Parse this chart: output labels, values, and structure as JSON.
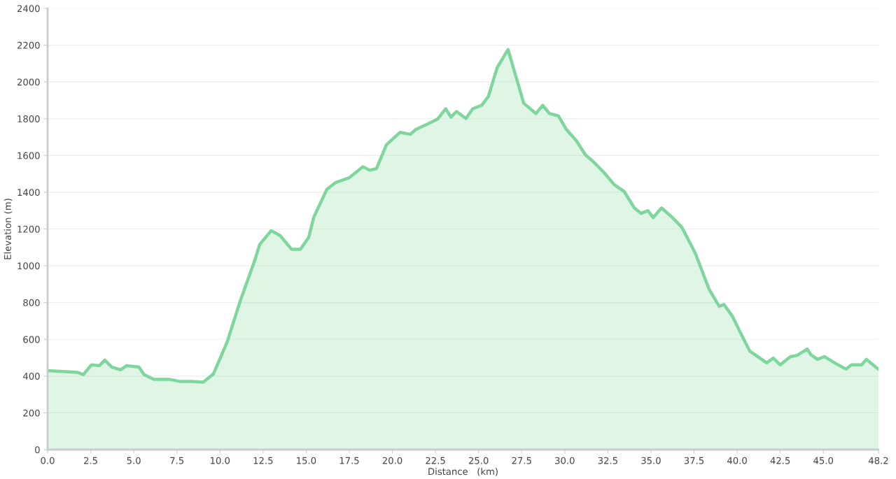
{
  "chart_data": {
    "type": "area",
    "xlabel": "Distance   (km)",
    "ylabel": "Elevation (m)",
    "series": [
      {
        "color": "#7fd69c",
        "x": [
          0.0,
          1.75,
          2.07,
          2.54,
          3.0,
          3.33,
          3.72,
          4.23,
          4.59,
          5.3,
          5.6,
          6.16,
          7.07,
          7.66,
          8.37,
          9.03,
          9.62,
          10.41,
          11.2,
          11.99,
          12.3,
          12.97,
          13.48,
          14.15,
          14.66,
          15.14,
          15.45,
          16.2,
          16.71,
          17.5,
          18.29,
          18.68,
          19.07,
          19.66,
          20.45,
          21.04,
          21.35,
          22.22,
          22.62,
          23.09,
          23.4,
          23.72,
          24.27,
          24.66,
          25.18,
          25.57,
          26.08,
          26.71,
          27.62,
          28.33,
          28.72,
          29.11,
          29.63,
          30.1,
          30.69,
          31.2,
          31.67,
          32.26,
          32.86,
          33.45,
          34.03,
          34.43,
          34.82,
          35.13,
          35.61,
          36.2,
          36.79,
          37.58,
          38.37,
          38.96,
          39.23,
          39.74,
          40.33,
          40.73,
          41.32,
          41.71,
          42.1,
          42.5,
          43.09,
          43.48,
          44.07,
          44.27,
          44.66,
          45.06,
          45.65,
          46.32,
          46.63,
          47.22,
          47.5,
          48.13,
          48.2
        ],
        "values": [
          430,
          420,
          408,
          461,
          457,
          487,
          449,
          434,
          457,
          449,
          408,
          382,
          382,
          371,
          371,
          367,
          412,
          584,
          816,
          1022,
          1116,
          1191,
          1165,
          1090,
          1090,
          1153,
          1266,
          1416,
          1453,
          1479,
          1539,
          1520,
          1528,
          1659,
          1726,
          1715,
          1741,
          1779,
          1798,
          1854,
          1809,
          1839,
          1801,
          1854,
          1873,
          1921,
          2078,
          2176,
          1884,
          1828,
          1873,
          1828,
          1816,
          1741,
          1678,
          1603,
          1565,
          1509,
          1442,
          1404,
          1315,
          1285,
          1300,
          1262,
          1315,
          1266,
          1210,
          1067,
          873,
          779,
          790,
          723,
          610,
          536,
          498,
          472,
          498,
          461,
          506,
          513,
          547,
          517,
          491,
          506,
          472,
          438,
          461,
          461,
          491,
          442,
          438
        ]
      }
    ],
    "xlim": [
      0,
      48.2
    ],
    "xticks": [
      {
        "value": 0,
        "label": "0.0"
      },
      {
        "value": 2.5,
        "label": "2.5"
      },
      {
        "value": 5,
        "label": "5.0"
      },
      {
        "value": 7.5,
        "label": "7.5"
      },
      {
        "value": 10,
        "label": "10.0"
      },
      {
        "value": 12.5,
        "label": "12.5"
      },
      {
        "value": 15,
        "label": "15.0"
      },
      {
        "value": 17.5,
        "label": "17.5"
      },
      {
        "value": 20,
        "label": "20.0"
      },
      {
        "value": 22.5,
        "label": "22.5"
      },
      {
        "value": 25,
        "label": "25.0"
      },
      {
        "value": 27.5,
        "label": "27.5"
      },
      {
        "value": 30,
        "label": "30.0"
      },
      {
        "value": 32.5,
        "label": "32.5"
      },
      {
        "value": 35,
        "label": "35.0"
      },
      {
        "value": 37.5,
        "label": "37.5"
      },
      {
        "value": 40,
        "label": "40.0"
      },
      {
        "value": 42.5,
        "label": "42.5"
      },
      {
        "value": 45,
        "label": "45.0"
      },
      {
        "value": 48.2,
        "label": "48.2"
      }
    ],
    "ylim": [
      0,
      2400
    ],
    "yticks": [
      0,
      200,
      400,
      600,
      800,
      1000,
      1200,
      1400,
      1600,
      1800,
      2000,
      2200,
      2400
    ],
    "grid": "y",
    "line_style": "solid",
    "marker": "none"
  }
}
